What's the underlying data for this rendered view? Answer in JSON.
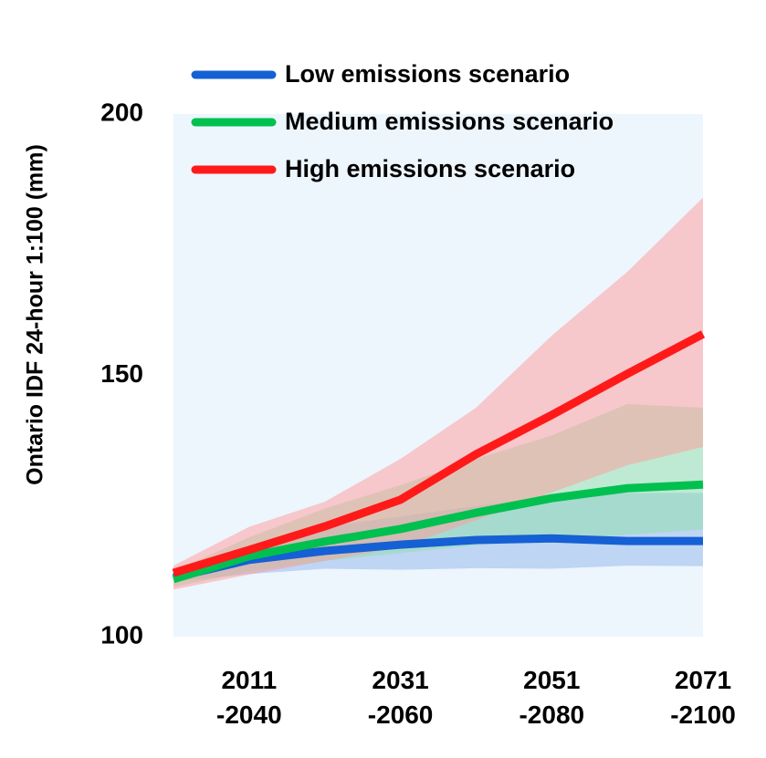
{
  "chart_data": {
    "type": "line",
    "y_label": "Ontario IDF 24-hour 1:100 (mm)",
    "x": [
      2016,
      2026,
      2036,
      2046,
      2056,
      2066,
      2076,
      2086
    ],
    "xlim": [
      2016,
      2086
    ],
    "xticks": [
      {
        "value": 2026,
        "label": "2011\n-2040"
      },
      {
        "value": 2046,
        "label": "2031\n-2060"
      },
      {
        "value": 2066,
        "label": "2051\n-2080"
      },
      {
        "value": 2086,
        "label": "2071\n-2100"
      }
    ],
    "ylim": [
      100,
      200
    ],
    "yticks": [
      100,
      150,
      200
    ],
    "background": "#edf5fd",
    "series": [
      {
        "name": "Low emissions scenario",
        "color": "#1560d4",
        "band_color": "#8fb5ec",
        "values": [
          111.3,
          114.7,
          116.4,
          117.6,
          118.5,
          118.8,
          118.3,
          118.3
        ],
        "lower": [
          110.5,
          112,
          113,
          112.8,
          113.1,
          113,
          113.6,
          113.5
        ],
        "upper": [
          112,
          117.5,
          121,
          123,
          125,
          127,
          127.5,
          127.5
        ]
      },
      {
        "name": "Medium emissions scenario",
        "color": "#00c050",
        "band_color": "#8fe0aa",
        "values": [
          111,
          115.4,
          118.2,
          120.6,
          123.7,
          126.5,
          128.4,
          129.1
        ],
        "lower": [
          109.5,
          112.5,
          114.5,
          116,
          117.5,
          118.5,
          119.5,
          120.5
        ],
        "upper": [
          112.5,
          119,
          124.5,
          129,
          134,
          138.5,
          144.5,
          143.8
        ]
      },
      {
        "name": "High emissions scenario",
        "color": "#ff1a1a",
        "band_color": "#ff9a9a",
        "values": [
          112.2,
          116.6,
          121.1,
          126.2,
          134.9,
          142.4,
          150.3,
          157.9
        ],
        "lower": [
          109,
          111.9,
          114.5,
          117.1,
          122.3,
          127.6,
          132.8,
          136.3
        ],
        "upper": [
          113.6,
          121,
          125.8,
          134,
          143.8,
          157.6,
          169.8,
          184
        ]
      }
    ]
  }
}
